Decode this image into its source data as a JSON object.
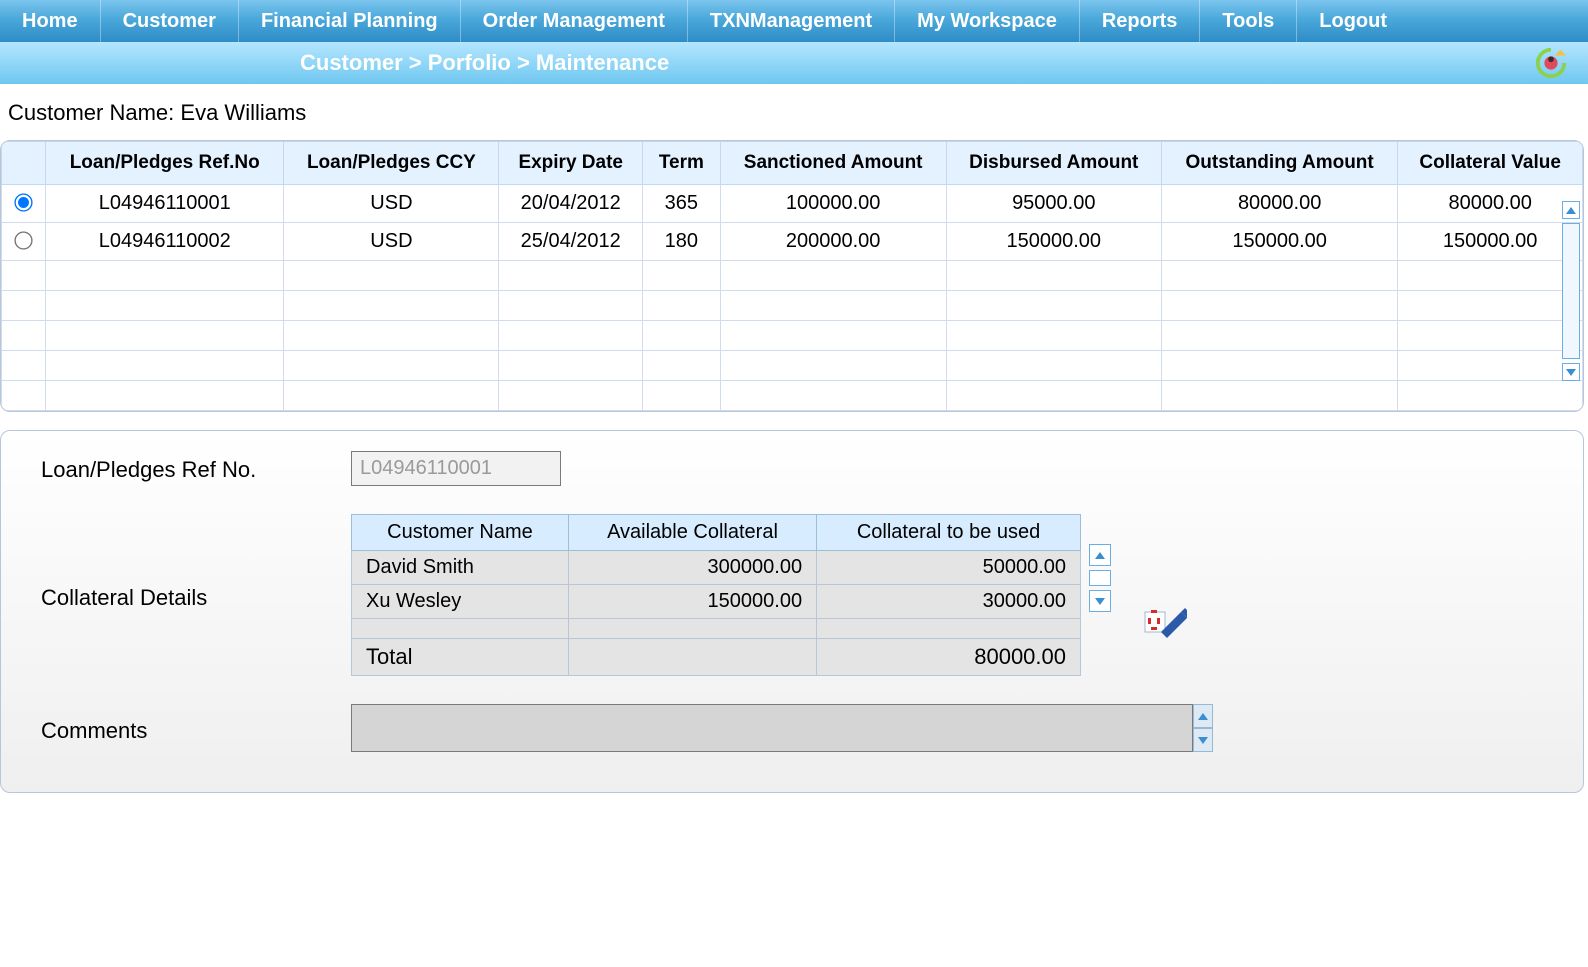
{
  "menu": {
    "items": [
      "Home",
      "Customer",
      "Financial Planning",
      "Order Management",
      "TXNManagement",
      "My Workspace",
      "Reports",
      "Tools",
      "Logout"
    ]
  },
  "breadcrumb": {
    "text": "Customer  >  Porfolio  >  Maintenance"
  },
  "customer": {
    "label": "Customer Name:",
    "name": "Eva Williams"
  },
  "loanTable": {
    "columns": [
      "Loan/Pledges Ref.No",
      "Loan/Pledges CCY",
      "Expiry Date",
      "Term",
      "Sanctioned Amount",
      "Disbursed Amount",
      "Outstanding Amount",
      "Collateral Value"
    ],
    "rows": [
      {
        "selected": true,
        "ref": "L04946110001",
        "ccy": "USD",
        "expiry": "20/04/2012",
        "term": "365",
        "sanctioned": "100000.00",
        "disbursed": "95000.00",
        "outstanding": "80000.00",
        "collateral": "80000.00"
      },
      {
        "selected": false,
        "ref": "L04946110002",
        "ccy": "USD",
        "expiry": "25/04/2012",
        "term": "180",
        "sanctioned": "200000.00",
        "disbursed": "150000.00",
        "outstanding": "150000.00",
        "collateral": "150000.00"
      }
    ],
    "emptyRowCount": 5
  },
  "detail": {
    "refLabel": "Loan/Pledges Ref No.",
    "refValue": "L04946110001",
    "collLabel": "Collateral Details",
    "commentsLabel": "Comments",
    "commentsValue": "",
    "collTable": {
      "columns": [
        "Customer Name",
        "Available Collateral",
        "Collateral to be used"
      ],
      "rows": [
        {
          "name": "David Smith",
          "avail": "300000.00",
          "used": "50000.00"
        },
        {
          "name": "Xu Wesley",
          "avail": "150000.00",
          "used": "30000.00"
        }
      ],
      "totalLabel": "Total",
      "totalValue": "80000.00"
    }
  },
  "colors": {
    "menuGradTop": "#7bc5ee",
    "menuGradBot": "#2f8cc6",
    "crumbGradTop": "#b4e6ff",
    "crumbGradBot": "#6fc7f0",
    "headerBg": "#e4f2ff",
    "cellBorder": "#d0dcee",
    "panelBorder": "#b9c6d8",
    "subHeaderBg": "#d7edff",
    "subCellBg": "#e4e4e4",
    "accent": "#3a8fd1"
  }
}
